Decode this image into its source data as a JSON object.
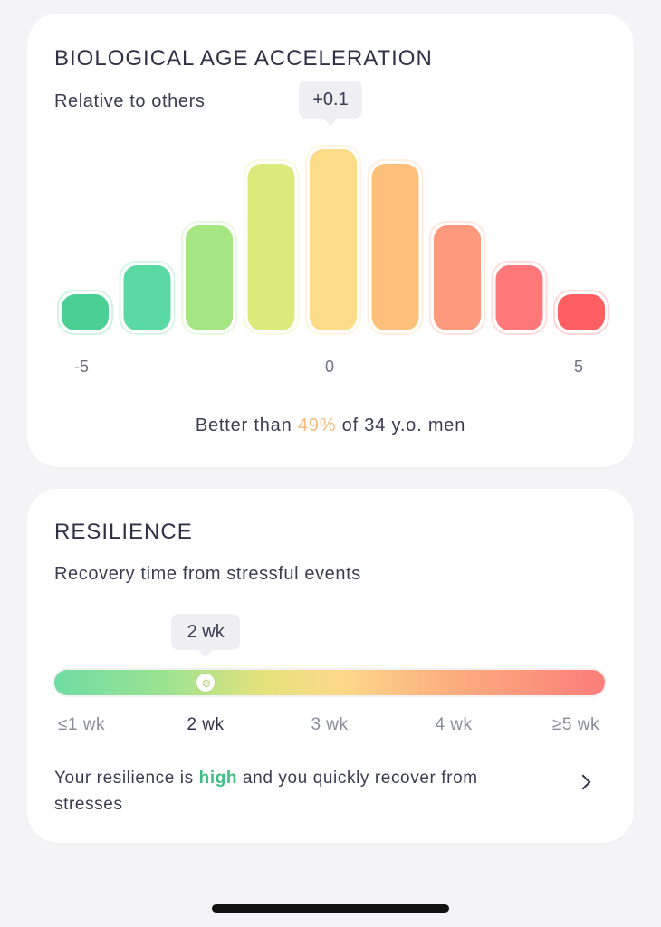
{
  "bio": {
    "title": "BIOLOGICAL AGE ACCELERATION",
    "subtitle": "Relative to others",
    "callout": "+0.1",
    "ticks": {
      "min": "-5",
      "mid": "0",
      "max": "5"
    },
    "stat_prefix": "Better than",
    "stat_percent": "49%",
    "stat_suffix": "of 34 y.o. men"
  },
  "chart_data": {
    "type": "bar",
    "categories": [
      "-4",
      "-3",
      "-2",
      "-1",
      "0",
      "1",
      "2",
      "3",
      "4"
    ],
    "values": [
      1.0,
      1.8,
      2.9,
      4.6,
      5.0,
      4.6,
      2.9,
      1.8,
      1.0
    ],
    "colors": [
      "#4ccf94",
      "#5bd9a3",
      "#a5e683",
      "#dcea7c",
      "#fcdc86",
      "#fdc07b",
      "#fd9a7d",
      "#fe787a",
      "#fe5f63"
    ],
    "highlight_index": 4,
    "xlim": [
      -5,
      5
    ],
    "x_tick_labels": [
      "-5",
      "0",
      "5"
    ]
  },
  "resilience": {
    "title": "RESILIENCE",
    "subtitle": "Recovery time from stressful events",
    "callout": "2 wk",
    "value_fraction": 0.275,
    "scale": [
      "≤1 wk",
      "2 wk",
      "3 wk",
      "4 wk",
      "≥5 wk"
    ],
    "active_index": 1,
    "summary_prefix": "Your resilience is",
    "summary_highlight": "high",
    "summary_suffix": "and you quickly recover from stresses",
    "chevron_icon": "chevron-right-icon"
  }
}
